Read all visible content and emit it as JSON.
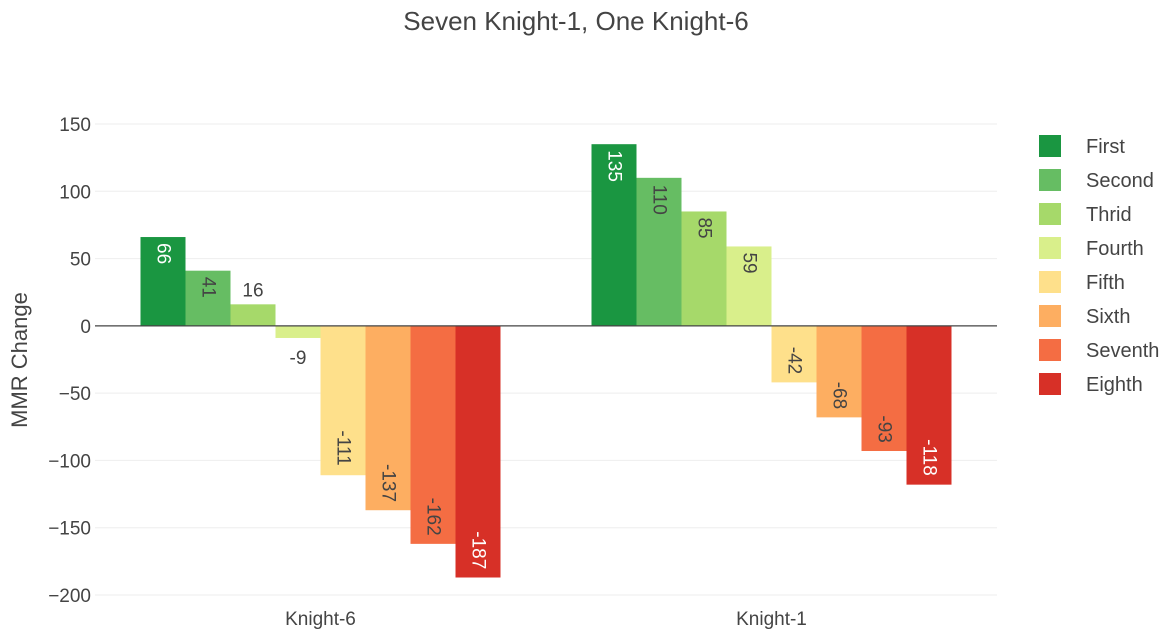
{
  "chart_data": {
    "type": "bar",
    "title": "Seven Knight-1, One Knight-6",
    "xlabel": "",
    "ylabel": "MMR Change",
    "ylim": [
      -200,
      150
    ],
    "yticks": [
      150,
      100,
      50,
      0,
      -50,
      -100,
      -150,
      -200
    ],
    "ytick_labels": [
      "150",
      "100",
      "50",
      "0",
      "−50",
      "−100",
      "−150",
      "−200"
    ],
    "grid": true,
    "legend_position": "right",
    "categories": [
      "Knight-6",
      "Knight-1"
    ],
    "series": [
      {
        "name": "First",
        "color": "#1a9641",
        "label_color": "#ffffff",
        "values": [
          66,
          135
        ]
      },
      {
        "name": "Second",
        "color": "#66bd63",
        "label_color": "#444444",
        "values": [
          41,
          110
        ]
      },
      {
        "name": "Thrid",
        "color": "#a6d96a",
        "label_color": "#444444",
        "values": [
          16,
          85
        ]
      },
      {
        "name": "Fourth",
        "color": "#d9ef8b",
        "label_color": "#444444",
        "values": [
          -9,
          59
        ]
      },
      {
        "name": "Fifth",
        "color": "#fee08b",
        "label_color": "#444444",
        "values": [
          -111,
          -42
        ]
      },
      {
        "name": "Sixth",
        "color": "#fdae61",
        "label_color": "#444444",
        "values": [
          -137,
          -68
        ]
      },
      {
        "name": "Seventh",
        "color": "#f46d43",
        "label_color": "#444444",
        "values": [
          -162,
          -93
        ]
      },
      {
        "name": "Eighth",
        "color": "#d73027",
        "label_color": "#ffffff",
        "values": [
          -187,
          -118
        ]
      }
    ]
  }
}
